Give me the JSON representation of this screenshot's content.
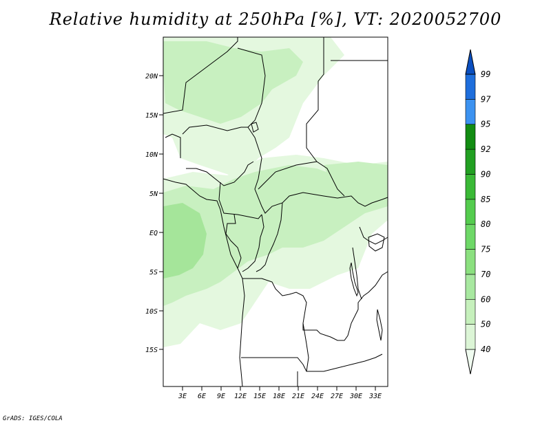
{
  "title": "Relative humidity at 250hPa [%], VT: 2020052700",
  "credit": "GrADS: IGES/COLA",
  "map": {
    "lat_labels": [
      "20N",
      "15N",
      "10N",
      "5N",
      "EQ",
      "5S",
      "10S",
      "15S"
    ],
    "lon_labels": [
      "3E",
      "6E",
      "9E",
      "12E",
      "15E",
      "18E",
      "21E",
      "24E",
      "27E",
      "30E",
      "33E"
    ]
  },
  "colorbar": {
    "labels": [
      "40",
      "50",
      "60",
      "70",
      "75",
      "80",
      "85",
      "90",
      "92",
      "95",
      "97",
      "99"
    ],
    "colors": [
      "#f0fcf0",
      "#dcf5d6",
      "#c6f0bc",
      "#a8e8a0",
      "#8be07f",
      "#6ed867",
      "#54cc4e",
      "#3ab936",
      "#22a022",
      "#128c12",
      "#3c92f0",
      "#1e6edc",
      "#0a4fc0"
    ]
  },
  "shading_colors": {
    "light": "#e4f8df",
    "medium": "#c8f0c0",
    "dense": "#a5e59a"
  }
}
